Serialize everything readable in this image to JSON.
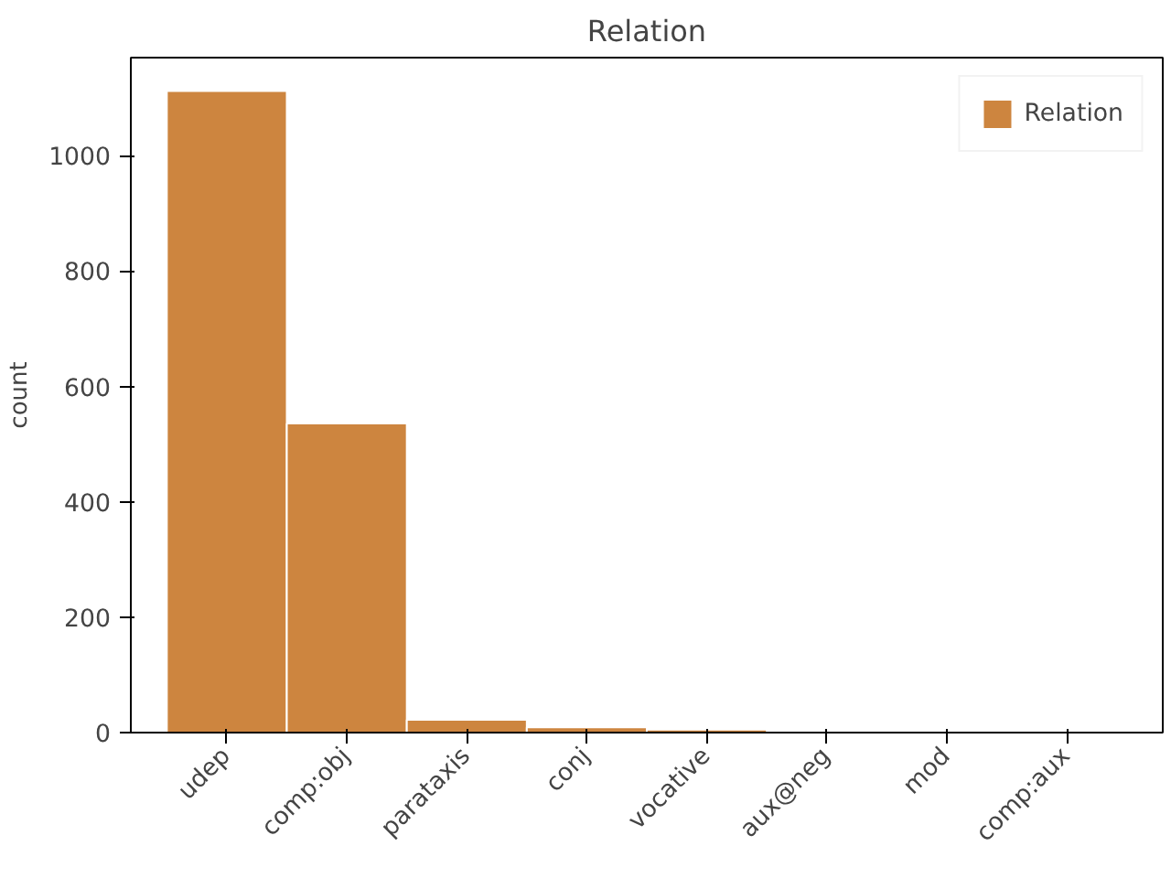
{
  "chart_data": {
    "type": "bar",
    "title": "Relation",
    "ylabel": "count",
    "categories": [
      "udep",
      "comp:obj",
      "parataxis",
      "conj",
      "vocative",
      "aux@neg",
      "mod",
      "comp:aux"
    ],
    "series": [
      {
        "name": "Relation",
        "color": "#cd853f",
        "values": [
          1112,
          536,
          22,
          9,
          5,
          null,
          null,
          null
        ]
      }
    ],
    "ylim": [
      0,
      1170
    ],
    "yticks": [
      0,
      200,
      400,
      600,
      800,
      1000
    ],
    "grid": false,
    "legend": "top right"
  }
}
